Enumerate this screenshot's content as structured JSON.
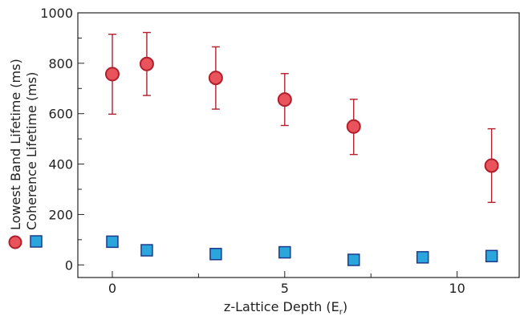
{
  "chart_data": {
    "type": "scatter",
    "xlabel": "z-Lattice Depth (E",
    "xlabel_sub": "r",
    "xlabel_close": ")",
    "ylabel_lines": [
      "Lowest Band Lifetime (ms)",
      "Coherence Lifetime (ms)"
    ],
    "xlim": [
      -1.0,
      11.8
    ],
    "ylim": [
      -50,
      1000
    ],
    "x_ticks": [
      0,
      5,
      10
    ],
    "x_minor_ticks": [
      2.5,
      7.5
    ],
    "y_ticks": [
      0,
      200,
      400,
      600,
      800,
      1000
    ],
    "grid": false,
    "series": [
      {
        "marker": "circle",
        "color": "#e9545c",
        "edge": "#b0202c",
        "points": [
          {
            "x": 0,
            "y": 757,
            "err_low": 598,
            "err_high": 915
          },
          {
            "x": 1,
            "y": 797,
            "err_low": 672,
            "err_high": 922
          },
          {
            "x": 3,
            "y": 742,
            "err_low": 618,
            "err_high": 865
          },
          {
            "x": 5,
            "y": 656,
            "err_low": 553,
            "err_high": 759
          },
          {
            "x": 7,
            "y": 549,
            "err_low": 438,
            "err_high": 657
          },
          {
            "x": 11,
            "y": 394,
            "err_low": 248,
            "err_high": 540
          }
        ]
      },
      {
        "marker": "square",
        "color": "#2aa6dc",
        "edge": "#1c3a8c",
        "points": [
          {
            "x": 0,
            "y": 92
          },
          {
            "x": 1,
            "y": 58
          },
          {
            "x": 3,
            "y": 43
          },
          {
            "x": 5,
            "y": 50
          },
          {
            "x": 7,
            "y": 20
          },
          {
            "x": 9,
            "y": 30
          },
          {
            "x": 11,
            "y": 35
          }
        ]
      }
    ]
  }
}
